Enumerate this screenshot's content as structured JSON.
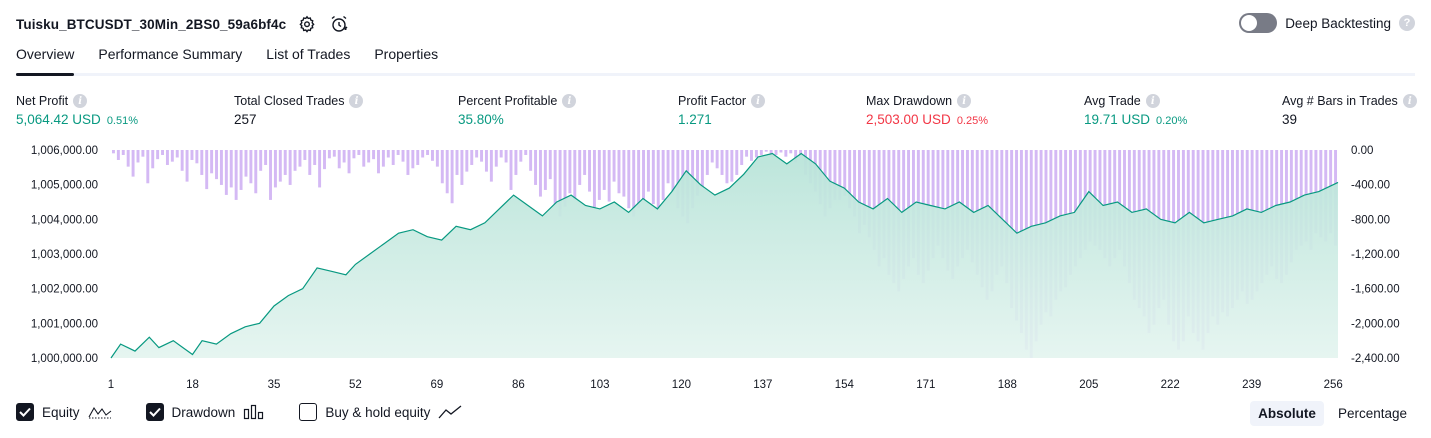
{
  "header": {
    "title": "Tuisku_BTCUSDT_30Min_2BS0_59a6bf4c",
    "deep_backtesting_label": "Deep Backtesting",
    "help_glyph": "?"
  },
  "tabs": [
    {
      "label": "Overview",
      "active": true
    },
    {
      "label": "Performance Summary",
      "active": false
    },
    {
      "label": "List of Trades",
      "active": false
    },
    {
      "label": "Properties",
      "active": false
    }
  ],
  "metrics": [
    {
      "label": "Net Profit",
      "value": "5,064.42 USD",
      "pct": "0.51%",
      "tone": "pos"
    },
    {
      "label": "Total Closed Trades",
      "value": "257",
      "pct": "",
      "tone": "neu"
    },
    {
      "label": "Percent Profitable",
      "value": "35.80%",
      "pct": "",
      "tone": "pos"
    },
    {
      "label": "Profit Factor",
      "value": "1.271",
      "pct": "",
      "tone": "pos"
    },
    {
      "label": "Max Drawdown",
      "value": "2,503.00 USD",
      "pct": "0.25%",
      "tone": "neg"
    },
    {
      "label": "Avg Trade",
      "value": "19.71 USD",
      "pct": "0.20%",
      "tone": "pos"
    },
    {
      "label": "Avg # Bars in Trades",
      "value": "39",
      "pct": "",
      "tone": "neu"
    }
  ],
  "colors": {
    "positive": "#089981",
    "negative": "#f23645",
    "equity_line": "#089981",
    "equity_fill": "#cdebe4",
    "drawdown_bar": "#c49ef0"
  },
  "chart_data": {
    "type": "area",
    "x_ticks": [
      "1",
      "18",
      "35",
      "52",
      "69",
      "86",
      "103",
      "120",
      "137",
      "154",
      "171",
      "188",
      "205",
      "222",
      "239",
      "256"
    ],
    "left_ticks": [
      "1,006,000.00",
      "1,005,000.00",
      "1,004,000.00",
      "1,003,000.00",
      "1,002,000.00",
      "1,001,000.00",
      "1,000,000.00"
    ],
    "right_ticks": [
      "0.00",
      "-400.00",
      "-800.00",
      "-1,200.00",
      "-1,600.00",
      "-2,000.00",
      "-2,400.00"
    ],
    "xlim": [
      1,
      257
    ],
    "ylim_left": [
      1000000,
      1006000
    ],
    "ylim_right": [
      -2500,
      0
    ],
    "series": [
      {
        "name": "Equity",
        "axis": "left",
        "points": [
          [
            1,
            1000000
          ],
          [
            3,
            1000400
          ],
          [
            6,
            1000200
          ],
          [
            9,
            1000600
          ],
          [
            11,
            1000300
          ],
          [
            14,
            1000500
          ],
          [
            16,
            1000300
          ],
          [
            18,
            1000100
          ],
          [
            20,
            1000500
          ],
          [
            23,
            1000400
          ],
          [
            26,
            1000700
          ],
          [
            29,
            1000900
          ],
          [
            32,
            1001000
          ],
          [
            35,
            1001500
          ],
          [
            38,
            1001800
          ],
          [
            41,
            1002000
          ],
          [
            44,
            1002600
          ],
          [
            47,
            1002500
          ],
          [
            50,
            1002400
          ],
          [
            52,
            1002700
          ],
          [
            55,
            1003000
          ],
          [
            58,
            1003300
          ],
          [
            61,
            1003600
          ],
          [
            64,
            1003700
          ],
          [
            67,
            1003500
          ],
          [
            70,
            1003400
          ],
          [
            73,
            1003800
          ],
          [
            76,
            1003700
          ],
          [
            79,
            1003900
          ],
          [
            82,
            1004300
          ],
          [
            85,
            1004700
          ],
          [
            88,
            1004400
          ],
          [
            91,
            1004100
          ],
          [
            94,
            1004500
          ],
          [
            97,
            1004700
          ],
          [
            100,
            1004400
          ],
          [
            103,
            1004300
          ],
          [
            106,
            1004500
          ],
          [
            109,
            1004200
          ],
          [
            112,
            1004600
          ],
          [
            115,
            1004300
          ],
          [
            118,
            1004800
          ],
          [
            121,
            1005400
          ],
          [
            124,
            1005000
          ],
          [
            127,
            1004700
          ],
          [
            130,
            1004900
          ],
          [
            133,
            1005300
          ],
          [
            136,
            1005800
          ],
          [
            139,
            1005900
          ],
          [
            142,
            1005600
          ],
          [
            145,
            1005900
          ],
          [
            148,
            1005600
          ],
          [
            151,
            1005100
          ],
          [
            154,
            1004900
          ],
          [
            157,
            1004500
          ],
          [
            160,
            1004300
          ],
          [
            163,
            1004600
          ],
          [
            166,
            1004200
          ],
          [
            169,
            1004500
          ],
          [
            172,
            1004400
          ],
          [
            175,
            1004300
          ],
          [
            178,
            1004500
          ],
          [
            181,
            1004200
          ],
          [
            184,
            1004400
          ],
          [
            187,
            1004000
          ],
          [
            190,
            1003600
          ],
          [
            193,
            1003800
          ],
          [
            196,
            1003900
          ],
          [
            199,
            1004100
          ],
          [
            202,
            1004200
          ],
          [
            205,
            1004800
          ],
          [
            208,
            1004400
          ],
          [
            211,
            1004500
          ],
          [
            214,
            1004200
          ],
          [
            217,
            1004300
          ],
          [
            220,
            1004000
          ],
          [
            223,
            1003900
          ],
          [
            226,
            1004200
          ],
          [
            229,
            1003900
          ],
          [
            232,
            1004000
          ],
          [
            235,
            1004100
          ],
          [
            238,
            1004300
          ],
          [
            241,
            1004200
          ],
          [
            244,
            1004400
          ],
          [
            247,
            1004500
          ],
          [
            250,
            1004700
          ],
          [
            253,
            1004800
          ],
          [
            257,
            1005064
          ]
        ]
      },
      {
        "name": "Drawdown",
        "axis": "right",
        "values": [
          -40,
          -120,
          -60,
          -200,
          -320,
          -150,
          -80,
          -400,
          -220,
          -110,
          -60,
          -180,
          -140,
          -90,
          -250,
          -380,
          -120,
          -160,
          -300,
          -470,
          -280,
          -350,
          -420,
          -540,
          -450,
          -600,
          -480,
          -320,
          -400,
          -520,
          -250,
          -180,
          -600,
          -450,
          -380,
          -300,
          -420,
          -250,
          -200,
          -120,
          -300,
          -180,
          -450,
          -230,
          -100,
          -80,
          -220,
          -150,
          -280,
          -100,
          -60,
          -200,
          -150,
          -110,
          -280,
          -200,
          -90,
          -180,
          -60,
          -140,
          -300,
          -220,
          -180,
          -90,
          -60,
          -130,
          -200,
          -400,
          -520,
          -640,
          -300,
          -420,
          -260,
          -180,
          -90,
          -140,
          -260,
          -380,
          -200,
          -90,
          -150,
          -480,
          -300,
          -140,
          -60,
          -250,
          -420,
          -560,
          -480,
          -350,
          -650,
          -800,
          -680,
          -520,
          -600,
          -420,
          -300,
          -500,
          -700,
          -600,
          -480,
          -620,
          -380,
          -520,
          -560,
          -700,
          -800,
          -700,
          -600,
          -500,
          -650,
          -720,
          -600,
          -400,
          -500,
          -700,
          -800,
          -880,
          -700,
          -550,
          -450,
          -300,
          -150,
          -220,
          -300,
          -400,
          -380,
          -300,
          -180,
          -80,
          -130,
          -90,
          -60,
          -20,
          -80,
          -60,
          -30,
          -80,
          -40,
          -150,
          -70,
          -300,
          -400,
          -500,
          -650,
          -800,
          -700,
          -600,
          -600,
          -550,
          -700,
          -800,
          -1000,
          -900,
          -1050,
          -1200,
          -1400,
          -1300,
          -1500,
          -1600,
          -1700,
          -1550,
          -1400,
          -1300,
          -1500,
          -1600,
          -1450,
          -1300,
          -1150,
          -1300,
          -1450,
          -1550,
          -1400,
          -1300,
          -1200,
          -1350,
          -1500,
          -1650,
          -1800,
          -1700,
          -1500,
          -1400,
          -1600,
          -1900,
          -2050,
          -2200,
          -2400,
          -2500,
          -2300,
          -2100,
          -1950,
          -2000,
          -1800,
          -1700,
          -1650,
          -1500,
          -1400,
          -1300,
          -1200,
          -1100,
          -1150,
          -1200,
          -1300,
          -1400,
          -1300,
          -1200,
          -1400,
          -1600,
          -1800,
          -1900,
          -2000,
          -2200,
          -2100,
          -1900,
          -1800,
          -2100,
          -2300,
          -2400,
          -2300,
          -2000,
          -2200,
          -2300,
          -2400,
          -2200,
          -2000,
          -2100,
          -1950,
          -2000,
          -1900,
          -1800,
          -1700,
          -1850,
          -1800,
          -1700,
          -1600,
          -1500,
          -1400,
          -1550,
          -1600,
          -1500,
          -1350,
          -1200,
          -1150,
          -1100,
          -1200,
          -1000,
          -1050,
          -1100,
          -1000,
          -1150
        ]
      }
    ]
  },
  "legend": [
    {
      "label": "Equity",
      "checked": true,
      "icon": "equity-line-icon"
    },
    {
      "label": "Drawdown",
      "checked": true,
      "icon": "drawdown-bars-icon"
    },
    {
      "label": "Buy & hold equity",
      "checked": false,
      "icon": "buy-hold-line-icon"
    }
  ],
  "mode": {
    "absolute": "Absolute",
    "percentage": "Percentage",
    "active": "absolute"
  }
}
